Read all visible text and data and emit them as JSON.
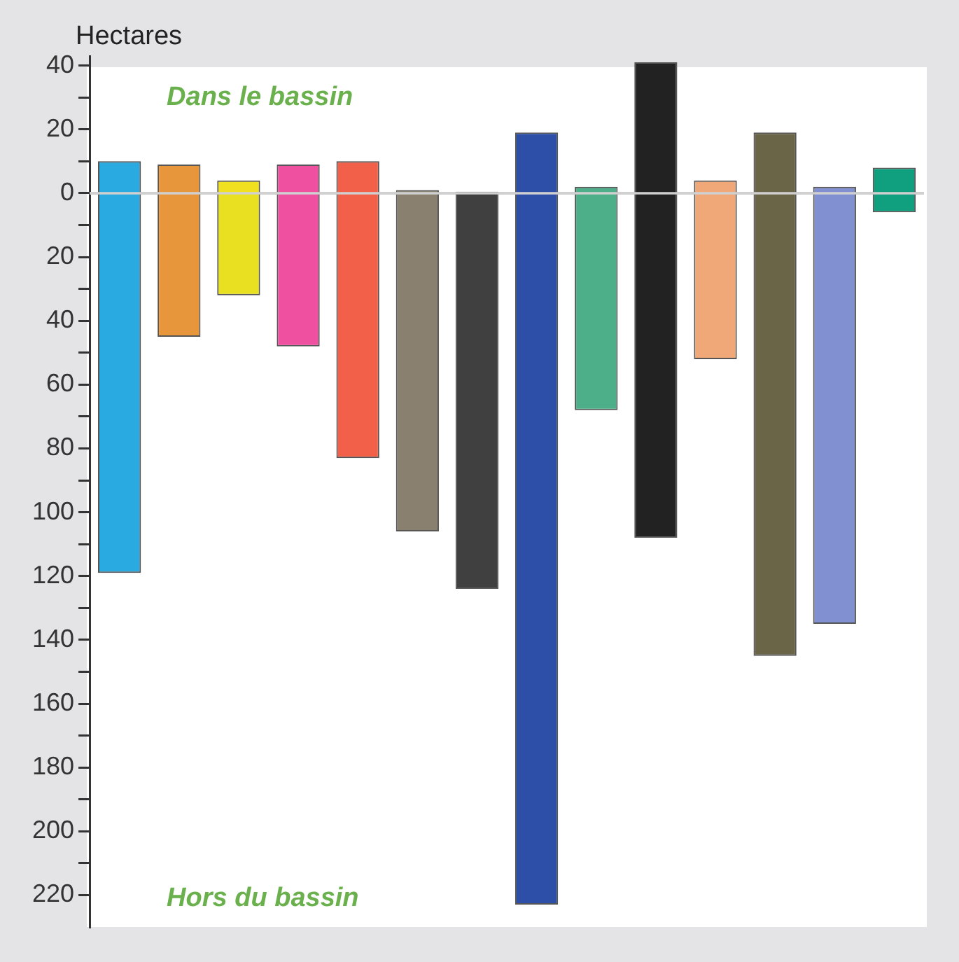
{
  "chart_data": {
    "type": "bar",
    "stacked": true,
    "ylabel": "Hectares",
    "annotations": [
      "Dans le bassin",
      "Hors du bassin"
    ],
    "categories": [
      null,
      null,
      null,
      null,
      null,
      null,
      null,
      null,
      null,
      null,
      null,
      null,
      null,
      null
    ],
    "series": [
      {
        "colors": [
          "#29abe2",
          "#e8963c",
          "#f0e020",
          "#f050a0",
          "#f2604a",
          "#8a8070",
          "#505050",
          "#2e4fa8",
          "#4caf8a",
          "#222222",
          "#f0a878",
          "#6b6548",
          "#8090d0",
          "#10a080"
        ],
        "values": [
          10,
          9,
          4,
          9,
          10,
          1,
          0.5,
          19,
          2,
          41,
          4,
          19,
          2,
          8
        ]
      },
      {
        "colors": [
          "#29abe2",
          "#e8963c",
          "#e8e020",
          "#f050a0",
          "#f2604a",
          "#8a8070",
          "#404040",
          "#2e4fa8",
          "#4caf8a",
          "#222222",
          "#f0a878",
          "#6b6548",
          "#8090d0",
          "#10a080"
        ],
        "values": [
          -119,
          -45,
          -32,
          -48,
          -83,
          -106,
          -124,
          -223,
          -68,
          -108,
          -52,
          -145,
          -135,
          -6
        ]
      }
    ],
    "ylim": [
      -230,
      43
    ],
    "yticks": [
      {
        "value": 40,
        "label": "40"
      },
      {
        "value": 30,
        "label": null
      },
      {
        "value": 20,
        "label": "20"
      },
      {
        "value": 10,
        "label": null
      },
      {
        "value": 0,
        "label": "0"
      },
      {
        "value": -10,
        "label": null
      },
      {
        "value": -20,
        "label": "20"
      },
      {
        "value": -30,
        "label": null
      },
      {
        "value": -40,
        "label": "40"
      },
      {
        "value": -50,
        "label": null
      },
      {
        "value": -60,
        "label": "60"
      },
      {
        "value": -70,
        "label": null
      },
      {
        "value": -80,
        "label": "80"
      },
      {
        "value": -90,
        "label": null
      },
      {
        "value": -100,
        "label": "100"
      },
      {
        "value": -110,
        "label": null
      },
      {
        "value": -120,
        "label": "120"
      },
      {
        "value": -130,
        "label": null
      },
      {
        "value": -140,
        "label": "140"
      },
      {
        "value": -150,
        "label": null
      },
      {
        "value": -160,
        "label": "160"
      },
      {
        "value": -170,
        "label": null
      },
      {
        "value": -180,
        "label": "180"
      },
      {
        "value": -190,
        "label": null
      },
      {
        "value": -200,
        "label": "200"
      },
      {
        "value": -210,
        "label": null
      },
      {
        "value": -220,
        "label": "220"
      }
    ],
    "ref_lines": [
      {
        "axis": "y",
        "value": 0,
        "color": "#d0d0d0"
      }
    ],
    "tick_labels": "y",
    "grid": false,
    "legend": false
  }
}
